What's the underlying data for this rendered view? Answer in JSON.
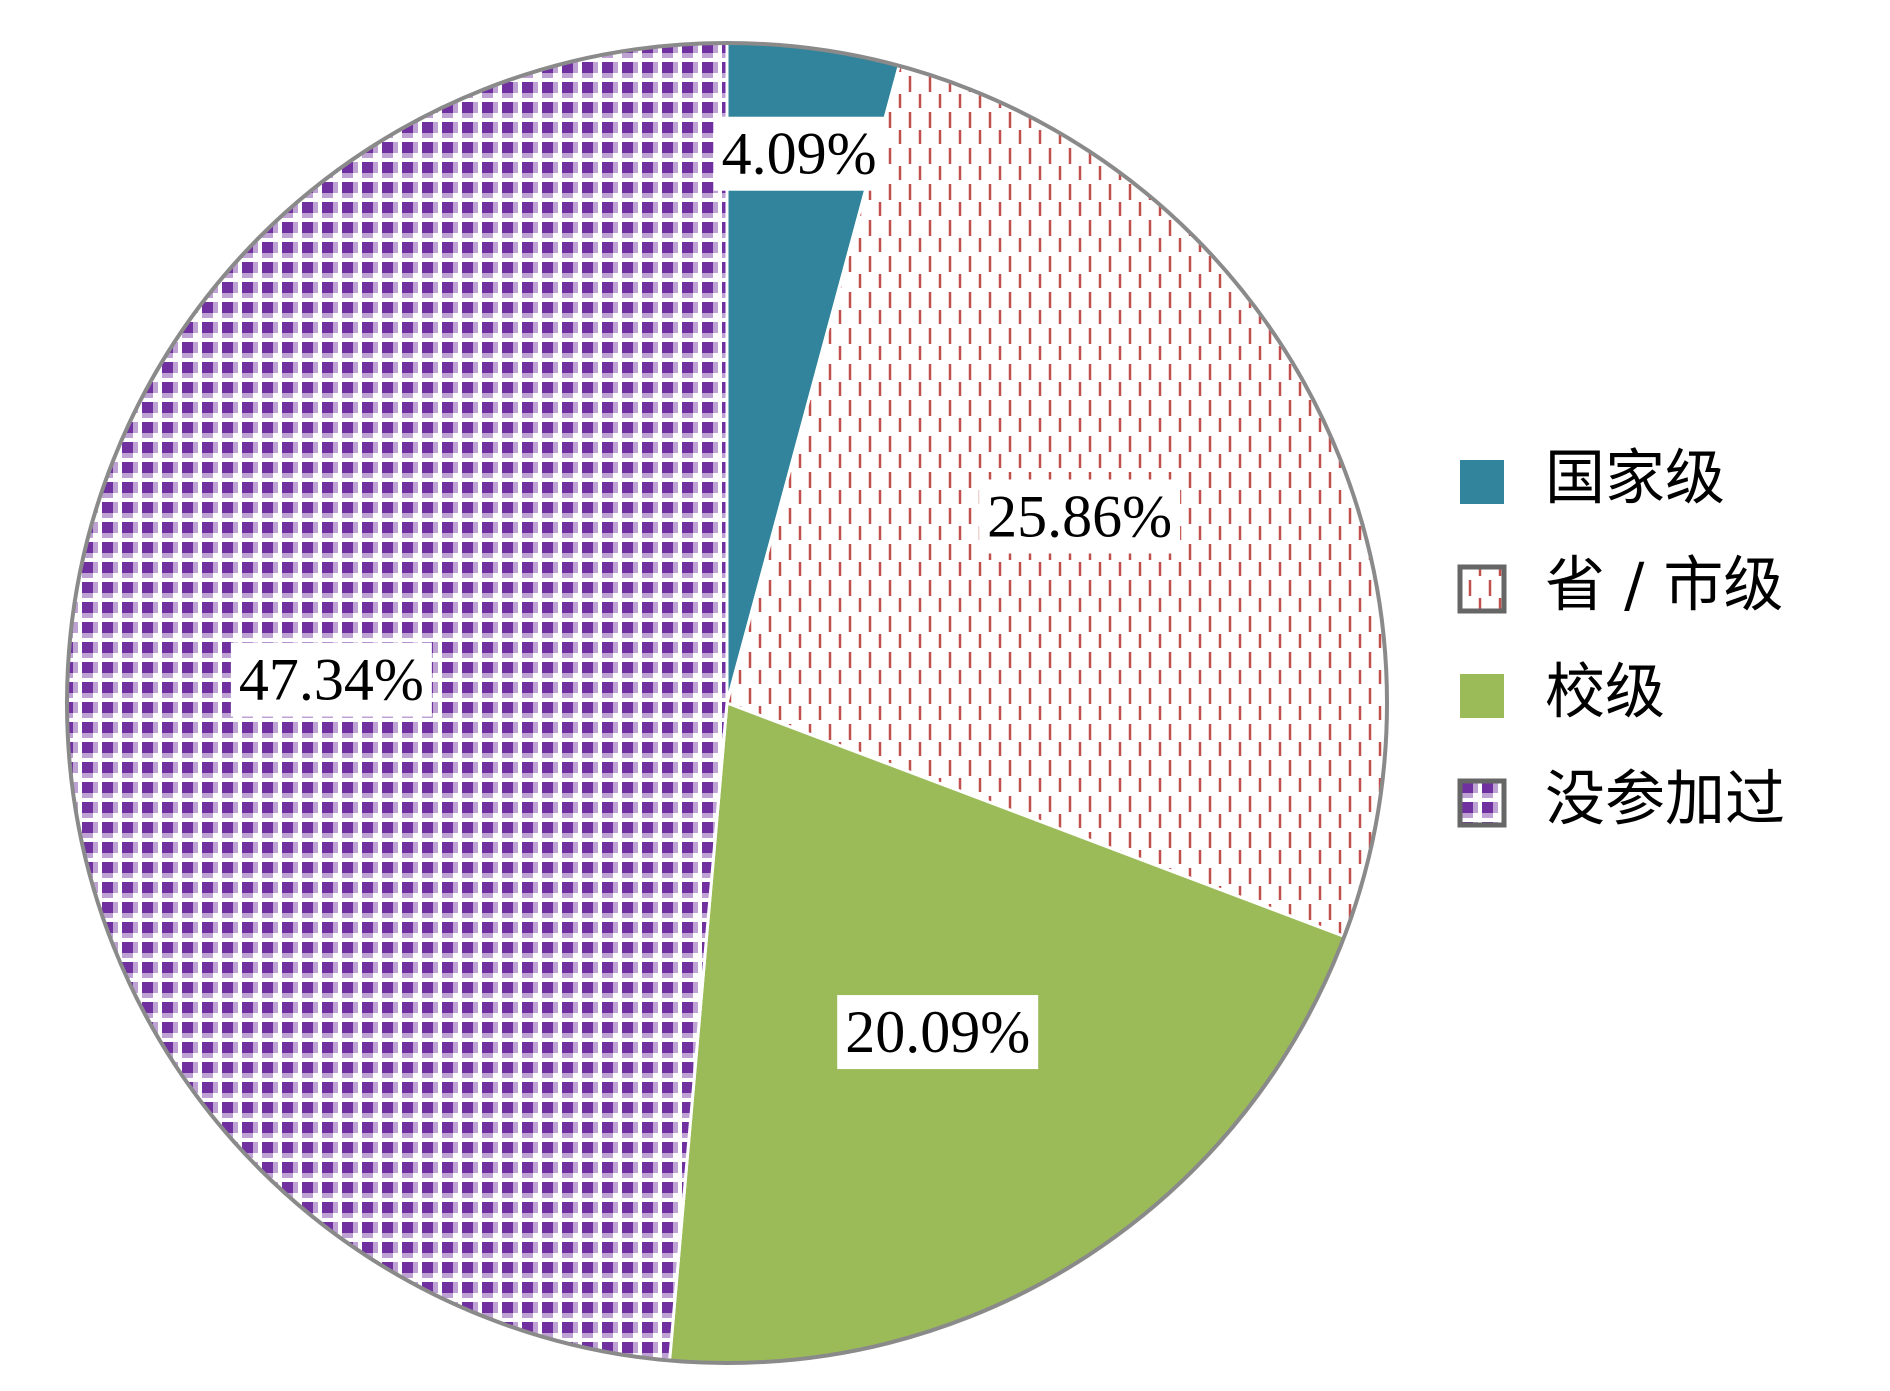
{
  "chart_data": {
    "type": "pie",
    "categories": [
      "国家级",
      "省 / 市级",
      "校级",
      "没参加过"
    ],
    "values": [
      4.09,
      25.86,
      20.09,
      47.34
    ],
    "value_labels": [
      "4.09%",
      "25.86%",
      "20.09%",
      "47.34%"
    ],
    "colors": [
      "#31849b",
      "#c0504d",
      "#9bbb59",
      "#7030a0"
    ],
    "patterns": [
      "solid",
      "dashes",
      "solid",
      "checker"
    ],
    "legend": "right"
  }
}
